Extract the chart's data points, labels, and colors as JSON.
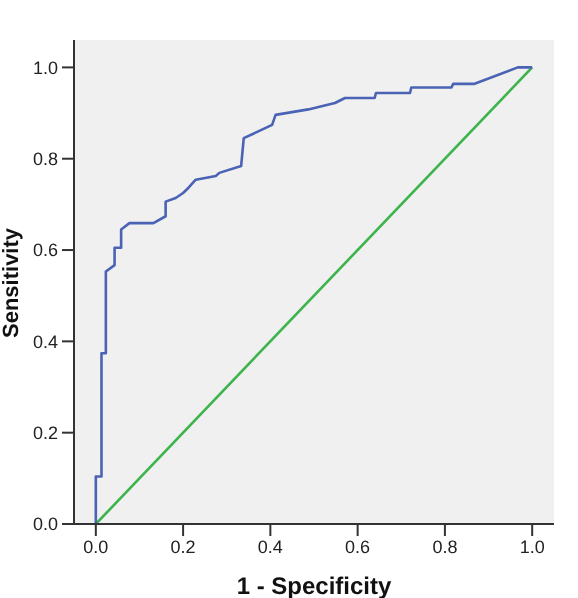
{
  "chart_data": {
    "type": "line",
    "xlabel": "1 - Specificity",
    "ylabel": "Sensitivity",
    "xlim": [
      -0.05,
      1.05
    ],
    "ylim": [
      0,
      1.06
    ],
    "xticks": [
      {
        "value": 0,
        "label": "0.0"
      },
      {
        "value": 0.2,
        "label": "0.2"
      },
      {
        "value": 0.4,
        "label": "0.4"
      },
      {
        "value": 0.6,
        "label": "0.6"
      },
      {
        "value": 0.8,
        "label": "0.8"
      },
      {
        "value": 1,
        "label": "1.0"
      }
    ],
    "yticks": [
      {
        "value": 0,
        "label": "0.0"
      },
      {
        "value": 0.2,
        "label": "0.2"
      },
      {
        "value": 0.4,
        "label": "0.4"
      },
      {
        "value": 0.6,
        "label": "0.6"
      },
      {
        "value": 0.8,
        "label": "0.8"
      },
      {
        "value": 1,
        "label": "1.0"
      }
    ],
    "grid": false,
    "marker": "none",
    "line_style": "solid",
    "series": [
      {
        "color": "#4a63b5",
        "x": [
          0,
          0,
          0.013,
          0.013,
          0.023,
          0.023,
          0.043,
          0.043,
          0.058,
          0.058,
          0.077,
          0.132,
          0.16,
          0.16,
          0.183,
          0.2,
          0.213,
          0.229,
          0.275,
          0.283,
          0.333,
          0.339,
          0.404,
          0.412,
          0.487,
          0.548,
          0.571,
          0.639,
          0.642,
          0.72,
          0.723,
          0.815,
          0.819,
          0.868,
          0.967,
          1
        ],
        "values": [
          0,
          0.104,
          0.104,
          0.374,
          0.374,
          0.553,
          0.567,
          0.605,
          0.605,
          0.645,
          0.659,
          0.659,
          0.674,
          0.706,
          0.714,
          0.725,
          0.737,
          0.754,
          0.762,
          0.769,
          0.784,
          0.845,
          0.874,
          0.896,
          0.908,
          0.922,
          0.933,
          0.933,
          0.944,
          0.944,
          0.956,
          0.956,
          0.964,
          0.964,
          1,
          1
        ]
      },
      {
        "color": "#3cb44b",
        "x": [
          0,
          1
        ],
        "values": [
          0,
          1
        ]
      }
    ]
  }
}
